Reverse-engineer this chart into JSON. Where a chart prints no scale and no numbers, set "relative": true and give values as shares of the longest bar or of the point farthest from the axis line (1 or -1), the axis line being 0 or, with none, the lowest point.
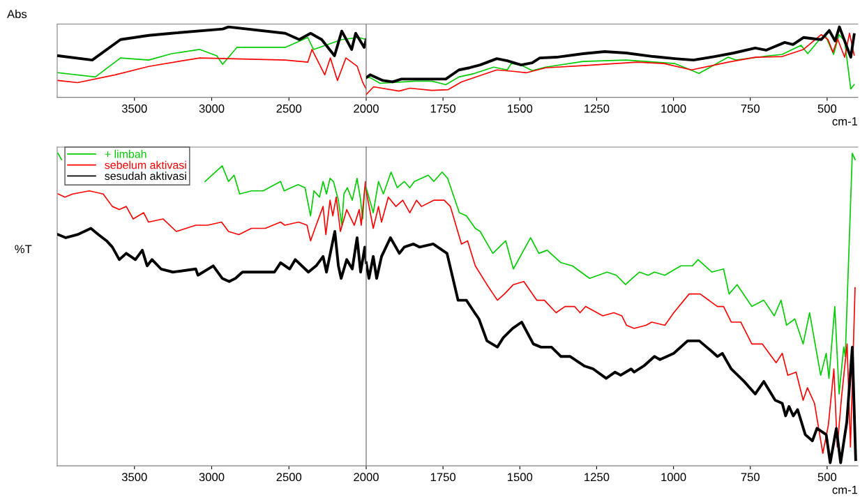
{
  "chart_data": [
    {
      "type": "line",
      "ylabel": "Abs",
      "relative": true,
      "xlim": [
        4000,
        2000
      ],
      "xticks": [
        3500,
        3000,
        2500
      ],
      "legend": false,
      "series": [
        {
          "color": "#00cc00",
          "x": [
            3994,
            3753,
            3590,
            3407,
            3260,
            3077,
            2967,
            2929,
            2837,
            2524,
            2378,
            2341,
            2158,
            2048,
            2000
          ],
          "values": [
            0.35,
            0.29,
            0.56,
            0.53,
            0.62,
            0.68,
            0.59,
            0.47,
            0.71,
            0.71,
            0.85,
            0.68,
            0.82,
            0.85,
            0.82
          ]
        },
        {
          "color": "#ff0000",
          "x": [
            3994,
            3868,
            3625,
            3407,
            3077,
            2524,
            2378,
            2351,
            2268,
            2232,
            2186,
            2131,
            2058,
            2022,
            2000
          ],
          "values": [
            0.24,
            0.21,
            0.32,
            0.44,
            0.56,
            0.53,
            0.5,
            0.68,
            0.32,
            0.56,
            0.24,
            0.56,
            0.44,
            0.21,
            0.12
          ]
        },
        {
          "color": "#000000",
          "x": [
            3994,
            3773,
            3590,
            3407,
            3260,
            2929,
            2891,
            2524,
            2433,
            2360,
            2288,
            2205,
            2158,
            2094,
            2068,
            2013,
            2000
          ],
          "values": [
            0.59,
            0.53,
            0.82,
            0.88,
            0.91,
            0.97,
            1.0,
            0.91,
            0.82,
            0.91,
            0.82,
            0.59,
            0.94,
            0.68,
            0.91,
            0.71,
            0.82
          ]
        }
      ]
    },
    {
      "type": "line",
      "xlabel": "cm-1",
      "relative": true,
      "xlim": [
        2000,
        400
      ],
      "xticks": [
        2000,
        1750,
        1500,
        1250,
        1000,
        750,
        500
      ],
      "ref_lines": [
        {
          "axis": "x",
          "value": 2000,
          "color": "#808080"
        }
      ],
      "legend": false,
      "series": [
        {
          "color": "#00cc00",
          "x": [
            2000,
            1987,
            1955,
            1840,
            1786,
            1749,
            1741,
            1698,
            1647,
            1585,
            1541,
            1528,
            1496,
            1460,
            1416,
            1294,
            1154,
            995,
            917,
            822,
            797,
            690,
            646,
            585,
            563,
            523,
            505,
            479,
            461,
            443,
            423,
            412
          ],
          "values": [
            0.28,
            0.28,
            0.2,
            0.23,
            0.23,
            0.19,
            0.18,
            0.29,
            0.34,
            0.43,
            0.39,
            0.48,
            0.46,
            0.38,
            0.43,
            0.51,
            0.53,
            0.48,
            0.34,
            0.57,
            0.53,
            0.59,
            0.61,
            0.74,
            0.62,
            0.83,
            0.87,
            0.61,
            0.89,
            0.8,
            0.12,
            0.18
          ]
        },
        {
          "color": "#ff0000",
          "x": [
            2000,
            1976,
            1893,
            1858,
            1786,
            1733,
            1690,
            1575,
            1523,
            1478,
            1416,
            1294,
            1118,
            1031,
            941,
            822,
            734,
            646,
            577,
            519,
            497,
            481,
            466,
            443,
            427,
            412
          ],
          "values": [
            0.04,
            0.15,
            0.09,
            0.13,
            0.1,
            0.11,
            0.22,
            0.39,
            0.37,
            0.35,
            0.42,
            0.45,
            0.5,
            0.48,
            0.39,
            0.5,
            0.57,
            0.58,
            0.68,
            0.89,
            0.82,
            0.64,
            0.83,
            0.57,
            0.91,
            0.6
          ]
        },
        {
          "color": "#000000",
          "x": [
            2000,
            1987,
            1946,
            1914,
            1885,
            1757,
            1741,
            1698,
            1664,
            1629,
            1575,
            1541,
            1496,
            1460,
            1435,
            1381,
            1294,
            1224,
            1154,
            1066,
            995,
            935,
            866,
            804,
            734,
            699,
            638,
            611,
            577,
            541,
            519,
            493,
            474,
            460,
            423,
            412
          ],
          "values": [
            0.28,
            0.32,
            0.24,
            0.22,
            0.26,
            0.26,
            0.26,
            0.39,
            0.42,
            0.46,
            0.55,
            0.52,
            0.46,
            0.49,
            0.56,
            0.57,
            0.62,
            0.65,
            0.63,
            0.58,
            0.55,
            0.53,
            0.58,
            0.63,
            0.7,
            0.67,
            0.78,
            0.75,
            0.85,
            0.83,
            0.82,
            0.95,
            0.8,
            1.0,
            0.57,
            0.89
          ]
        }
      ]
    },
    {
      "type": "line",
      "ylabel": "%T",
      "relative": true,
      "xlim": [
        4000,
        2000
      ],
      "xticks": [
        3500,
        3000,
        2500
      ],
      "legend": "top left",
      "series": [
        {
          "name": "+ limbah",
          "color": "#00cc00",
          "x": [
            3995,
            3972,
            3500,
            3043,
            2932,
            2891,
            2855,
            2819,
            2743,
            2667,
            2554,
            2531,
            2441,
            2396,
            2360,
            2338,
            2302,
            2279,
            2257,
            2234,
            2212,
            2180,
            2158,
            2144,
            2122,
            2090,
            2059,
            2036,
            2023,
            2009,
            2000
          ],
          "values": [
            1.0,
            0.98,
            null,
            0.91,
            0.96,
            0.91,
            0.93,
            0.87,
            0.88,
            0.88,
            0.91,
            0.88,
            0.9,
            0.89,
            0.8,
            0.88,
            0.86,
            0.91,
            0.87,
            0.92,
            0.91,
            0.85,
            0.77,
            0.87,
            0.89,
            0.85,
            0.92,
            0.85,
            0.79,
            0.89,
            0.89
          ]
        },
        {
          "name": "sebelum aktivasi",
          "color": "#ff0000",
          "x": [
            3994,
            3950,
            3900,
            3792,
            3702,
            3643,
            3598,
            3553,
            3508,
            3440,
            3409,
            3314,
            3229,
            3103,
            3026,
            2936,
            2891,
            2824,
            2743,
            2653,
            2554,
            2527,
            2437,
            2383,
            2360,
            2324,
            2279,
            2261,
            2234,
            2216,
            2194,
            2167,
            2126,
            2077,
            2045,
            2032,
            2005,
            2000
          ],
          "values": [
            0.87,
            0.86,
            0.87,
            0.88,
            0.87,
            0.83,
            0.82,
            0.83,
            0.79,
            0.81,
            0.78,
            0.79,
            0.75,
            0.77,
            0.77,
            0.78,
            0.75,
            0.74,
            0.76,
            0.76,
            0.78,
            0.77,
            0.78,
            0.77,
            0.72,
            0.77,
            0.83,
            0.74,
            0.85,
            0.8,
            0.86,
            0.75,
            0.82,
            0.77,
            0.82,
            0.77,
            0.91,
            0.88
          ]
        },
        {
          "name": "sesudah aktivasi",
          "color": "#000000",
          "x": [
            3994,
            3944,
            3868,
            3782,
            3733,
            3680,
            3643,
            3598,
            3553,
            3494,
            3449,
            3418,
            3386,
            3328,
            3251,
            3103,
            3089,
            2990,
            2932,
            2887,
            2846,
            2801,
            2698,
            2594,
            2554,
            2495,
            2459,
            2374,
            2324,
            2279,
            2257,
            2203,
            2180,
            2162,
            2126,
            2090,
            2059,
            2036,
            2009,
            2000
          ],
          "values": [
            0.74,
            0.73,
            0.74,
            0.76,
            0.74,
            0.72,
            0.7,
            0.66,
            0.68,
            0.66,
            0.69,
            0.64,
            0.66,
            0.63,
            0.62,
            0.63,
            0.61,
            0.64,
            0.6,
            0.59,
            0.6,
            0.62,
            0.62,
            0.62,
            0.65,
            0.63,
            0.66,
            0.62,
            0.64,
            0.67,
            0.62,
            0.75,
            0.64,
            0.6,
            0.66,
            0.63,
            0.73,
            0.62,
            0.7,
            0.65
          ]
        }
      ]
    },
    {
      "type": "line",
      "xlabel": "cm-1",
      "relative": true,
      "xlim": [
        2000,
        400
      ],
      "xticks": [
        2000,
        1750,
        1500,
        1250,
        1000,
        750,
        500
      ],
      "ref_lines": [
        {
          "axis": "x",
          "value": 2000,
          "color": "#808080"
        }
      ],
      "legend": false,
      "series": [
        {
          "color": "#00cc00",
          "x": [
            2000,
            1977,
            1960,
            1944,
            1919,
            1899,
            1876,
            1858,
            1843,
            1798,
            1780,
            1753,
            1735,
            1697,
            1674,
            1645,
            1629,
            1588,
            1546,
            1521,
            1465,
            1438,
            1411,
            1366,
            1329,
            1273,
            1216,
            1186,
            1156,
            1134,
            1111,
            1082,
            1062,
            1028,
            976,
            938,
            920,
            875,
            837,
            819,
            793,
            745,
            706,
            672,
            650,
            632,
            605,
            578,
            557,
            521,
            503,
            494,
            475,
            461,
            446,
            441,
            418,
            409
          ],
          "values": [
            0.89,
            0.81,
            0.91,
            0.87,
            0.94,
            0.89,
            0.91,
            0.89,
            0.91,
            0.93,
            0.91,
            0.94,
            0.92,
            0.81,
            0.8,
            0.76,
            0.75,
            0.68,
            0.72,
            0.63,
            0.73,
            0.68,
            0.69,
            0.65,
            0.64,
            0.6,
            0.62,
            0.61,
            0.58,
            0.6,
            0.62,
            0.61,
            0.62,
            0.61,
            0.64,
            0.64,
            0.66,
            0.62,
            0.63,
            0.55,
            0.58,
            0.51,
            0.53,
            0.48,
            0.53,
            0.45,
            0.47,
            0.39,
            0.49,
            0.29,
            0.36,
            0.28,
            0.51,
            0.23,
            0.38,
            0.35,
            1.0,
            0.98
          ]
        },
        {
          "color": "#ff0000",
          "x": [
            2000,
            1977,
            1960,
            1950,
            1928,
            1903,
            1881,
            1858,
            1836,
            1820,
            1780,
            1746,
            1726,
            1690,
            1670,
            1645,
            1607,
            1573,
            1550,
            1521,
            1487,
            1445,
            1420,
            1382,
            1353,
            1322,
            1304,
            1286,
            1230,
            1194,
            1168,
            1153,
            1128,
            1089,
            1071,
            1028,
            999,
            949,
            913,
            857,
            837,
            812,
            781,
            745,
            711,
            666,
            646,
            628,
            601,
            578,
            564,
            541,
            514,
            496,
            478,
            467,
            453,
            435,
            424,
            409
          ],
          "values": [
            0.88,
            0.76,
            0.83,
            0.78,
            0.86,
            0.83,
            0.85,
            0.81,
            0.85,
            0.83,
            0.85,
            0.85,
            0.83,
            0.71,
            0.72,
            0.64,
            0.58,
            0.53,
            0.55,
            0.58,
            0.59,
            0.53,
            0.53,
            0.49,
            0.51,
            0.51,
            0.49,
            0.51,
            0.48,
            0.49,
            0.48,
            0.45,
            0.44,
            0.45,
            0.46,
            0.45,
            0.49,
            0.55,
            0.55,
            0.51,
            0.51,
            0.46,
            0.46,
            0.39,
            0.39,
            0.33,
            0.36,
            0.29,
            0.3,
            0.21,
            0.25,
            0.2,
            0.04,
            0.13,
            0.31,
            0.06,
            0.22,
            0.39,
            0.06,
            0.57
          ]
        },
        {
          "color": "#000000",
          "x": [
            2000,
            1991,
            1977,
            1966,
            1950,
            1921,
            1892,
            1876,
            1846,
            1826,
            1782,
            1737,
            1701,
            1674,
            1647,
            1633,
            1607,
            1573,
            1554,
            1523,
            1494,
            1456,
            1431,
            1397,
            1366,
            1336,
            1291,
            1261,
            1219,
            1190,
            1172,
            1138,
            1128,
            1096,
            1062,
            1044,
            999,
            954,
            916,
            880,
            857,
            841,
            812,
            770,
            734,
            706,
            669,
            646,
            635,
            624,
            610,
            596,
            571,
            548,
            533,
            503,
            490,
            470,
            456,
            436,
            418,
            407
          ],
          "values": [
            0.65,
            0.6,
            0.67,
            0.6,
            0.67,
            0.73,
            0.68,
            0.7,
            0.71,
            0.7,
            0.71,
            0.68,
            0.53,
            0.53,
            0.49,
            0.47,
            0.4,
            0.38,
            0.41,
            0.44,
            0.46,
            0.39,
            0.38,
            0.38,
            0.35,
            0.35,
            0.32,
            0.31,
            0.28,
            0.3,
            0.29,
            0.31,
            0.3,
            0.32,
            0.35,
            0.34,
            0.36,
            0.4,
            0.4,
            0.37,
            0.35,
            0.36,
            0.31,
            0.27,
            0.23,
            0.27,
            0.21,
            0.2,
            0.16,
            0.19,
            0.16,
            0.18,
            0.1,
            0.08,
            0.12,
            0.1,
            0.01,
            0.12,
            0.01,
            0.14,
            0.38,
            0.02
          ]
        }
      ]
    }
  ]
}
